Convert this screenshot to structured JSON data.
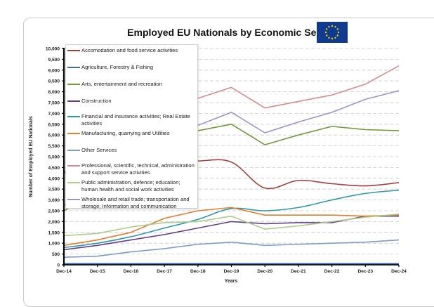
{
  "title": "Employed EU Nationals by Economic Sector",
  "flag_icon": "eu-flag-icon",
  "chart_data": {
    "type": "line",
    "title": "Employed EU Nationals by Economic Sector",
    "xlabel": "Years",
    "ylabel": "Number of Employed EU Nationals",
    "ylim": [
      0,
      10000
    ],
    "y_ticks": [
      0,
      500,
      1000,
      1500,
      2000,
      2500,
      3000,
      3500,
      4000,
      4500,
      5000,
      5500,
      6000,
      6500,
      7000,
      7500,
      8000,
      8500,
      9000,
      9500,
      10000
    ],
    "y_tick_labels": [
      "0",
      "500",
      "1,000",
      "1,500",
      "2,000",
      "2,500",
      "3,000",
      "3,500",
      "4,000",
      "4,500",
      "5,000",
      "5,500",
      "6,000",
      "6,500",
      "7,000",
      "7,500",
      "8,000",
      "8,500",
      "9,000",
      "9,500",
      "10,000"
    ],
    "categories": [
      "Dec-14",
      "Dec-15",
      "Dec-16",
      "Dec-17",
      "Dec-18",
      "Dec-19",
      "Dec-20",
      "Dec-21",
      "Dec-22",
      "Dec-23",
      "Dec-24"
    ],
    "grid": true,
    "legend_position": "top-left",
    "series": [
      {
        "name": "Accomodation and food service activities",
        "color": "#a0403c",
        "smooth": true,
        "values": [
          4250,
          4450,
          4600,
          4700,
          4800,
          4750,
          3550,
          3900,
          3750,
          3650,
          3800
        ]
      },
      {
        "name": "Agriculture, Forestry & Fishing",
        "color": "#3d6aa8",
        "smooth": false,
        "values": [
          50,
          50,
          50,
          50,
          50,
          50,
          50,
          50,
          50,
          50,
          50
        ]
      },
      {
        "name": "Arts, entertainment and recreation",
        "color": "#6f9a3a",
        "smooth": false,
        "values": [
          2500,
          3400,
          4400,
          5300,
          6200,
          6500,
          5550,
          6000,
          6400,
          6250,
          6200
        ]
      },
      {
        "name": "Construction",
        "color": "#5e3f8c",
        "smooth": false,
        "values": [
          700,
          900,
          1150,
          1400,
          1700,
          2000,
          1900,
          1950,
          1950,
          2250,
          2250
        ]
      },
      {
        "name": "Financial and insurance activities; Real Estate activities",
        "color": "#2e96a8",
        "smooth": true,
        "values": [
          800,
          1000,
          1300,
          1700,
          2100,
          2600,
          2500,
          2650,
          3000,
          3300,
          3450
        ]
      },
      {
        "name": "Manufacturing, quarrying and Utilities",
        "color": "#e07f2e",
        "smooth": false,
        "values": [
          900,
          1150,
          1500,
          2150,
          2500,
          2650,
          2300,
          2300,
          2300,
          2250,
          2300
        ]
      },
      {
        "name": "Other Services",
        "color": "#7d9ccc",
        "smooth": false,
        "values": [
          350,
          400,
          600,
          750,
          950,
          1050,
          900,
          950,
          1000,
          1050,
          1150
        ]
      },
      {
        "name": "Professional, scientific, technical, administration and support service activities",
        "color": "#d68a8a",
        "smooth": false,
        "values": [
          4300,
          5200,
          6100,
          7000,
          7700,
          8200,
          7250,
          7550,
          7850,
          8350,
          9200
        ]
      },
      {
        "name": "Public administration, defence; education; human health and social work activities",
        "color": "#aecb8a",
        "smooth": false,
        "values": [
          1350,
          1450,
          1750,
          1950,
          2000,
          2250,
          1650,
          1800,
          2000,
          2200,
          2350
        ]
      },
      {
        "name": "Wholesale and retail trade; transportation and storage; Information and communication",
        "color": "#9c94c6",
        "smooth": false,
        "values": [
          2750,
          3700,
          4700,
          5600,
          6450,
          7050,
          6100,
          6600,
          7050,
          7650,
          8050
        ]
      }
    ]
  }
}
